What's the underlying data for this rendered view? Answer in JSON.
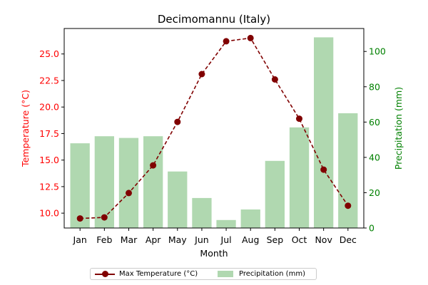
{
  "chart_data": {
    "type": "bar+line",
    "title": "Decimomannu (Italy)",
    "xlabel": "Month",
    "categories": [
      "Jan",
      "Feb",
      "Mar",
      "Apr",
      "May",
      "Jun",
      "Jul",
      "Aug",
      "Sep",
      "Oct",
      "Nov",
      "Dec"
    ],
    "left_axis": {
      "label": "Temperature (°C)",
      "color": "#ff0000",
      "ylim": [
        8.6,
        27.4
      ],
      "ticks": [
        "10.0",
        "12.5",
        "15.0",
        "17.5",
        "20.0",
        "22.5",
        "25.0"
      ]
    },
    "right_axis": {
      "label": "Precipitation (mm)",
      "color": "#008000",
      "ylim": [
        0,
        113
      ],
      "ticks": [
        "0",
        "20",
        "40",
        "60",
        "80",
        "100"
      ]
    },
    "series": [
      {
        "name": "Max Temperature (°C)",
        "kind": "line",
        "axis": "left",
        "color": "#800000",
        "style": "dashed with circle markers",
        "values": [
          9.5,
          9.6,
          11.9,
          14.5,
          18.6,
          23.1,
          26.2,
          26.5,
          22.6,
          18.9,
          14.1,
          10.7
        ]
      },
      {
        "name": "Precipitation (mm)",
        "kind": "bar",
        "axis": "right",
        "color": "#8fc88f",
        "values": [
          48,
          52,
          51,
          52,
          32,
          17,
          4.5,
          10.5,
          38,
          57,
          108,
          65
        ]
      }
    ],
    "legend_position": "bottom-center",
    "grid": false
  }
}
